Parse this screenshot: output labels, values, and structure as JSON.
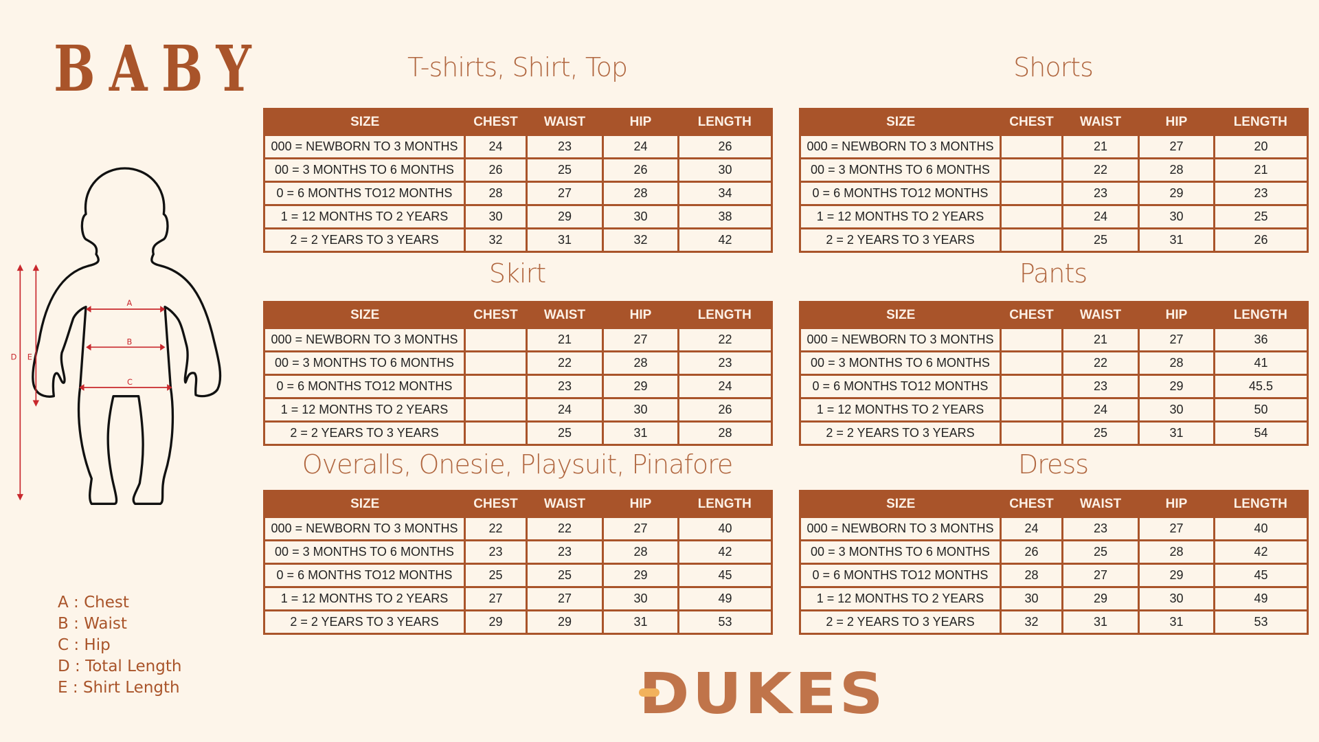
{
  "brand_title": "BABY",
  "legend": [
    "A : Chest",
    "B : Waist",
    "C : Hip",
    "D : Total Length",
    "E : Shirt Length"
  ],
  "diagram_labels": [
    "A",
    "B",
    "C",
    "D",
    "E"
  ],
  "logo": "DUKES",
  "colors": {
    "accent": "#a9542a",
    "background": "#fdf5ea",
    "logo": "#c0744a",
    "logo_accent": "#f2b25c",
    "diagram_arrows": "#c8282d"
  },
  "columns": [
    "SIZE",
    "CHEST",
    "WAIST",
    "HIP",
    "LENGTH"
  ],
  "sizes": [
    "000 = NEWBORN TO 3 MONTHS",
    "00 = 3 MONTHS TO 6 MONTHS",
    "0 = 6 MONTHS TO12 MONTHS",
    "1 = 12 MONTHS TO 2 YEARS",
    "2 = 2 YEARS TO 3 YEARS"
  ],
  "tables": [
    {
      "title": "T-shirts, Shirt, Top",
      "rows": [
        [
          "24",
          "23",
          "24",
          "26"
        ],
        [
          "26",
          "25",
          "26",
          "30"
        ],
        [
          "28",
          "27",
          "28",
          "34"
        ],
        [
          "30",
          "29",
          "30",
          "38"
        ],
        [
          "32",
          "31",
          "32",
          "42"
        ]
      ]
    },
    {
      "title": "Shorts",
      "rows": [
        [
          "",
          "21",
          "27",
          "20"
        ],
        [
          "",
          "22",
          "28",
          "21"
        ],
        [
          "",
          "23",
          "29",
          "23"
        ],
        [
          "",
          "24",
          "30",
          "25"
        ],
        [
          "",
          "25",
          "31",
          "26"
        ]
      ]
    },
    {
      "title": "Skirt",
      "rows": [
        [
          "",
          "21",
          "27",
          "22"
        ],
        [
          "",
          "22",
          "28",
          "23"
        ],
        [
          "",
          "23",
          "29",
          "24"
        ],
        [
          "",
          "24",
          "30",
          "26"
        ],
        [
          "",
          "25",
          "31",
          "28"
        ]
      ]
    },
    {
      "title": "Pants",
      "rows": [
        [
          "",
          "21",
          "27",
          "36"
        ],
        [
          "",
          "22",
          "28",
          "41"
        ],
        [
          "",
          "23",
          "29",
          "45.5"
        ],
        [
          "",
          "24",
          "30",
          "50"
        ],
        [
          "",
          "25",
          "31",
          "54"
        ]
      ]
    },
    {
      "title": "Overalls, Onesie, Playsuit, Pinafore",
      "rows": [
        [
          "22",
          "22",
          "27",
          "40"
        ],
        [
          "23",
          "23",
          "28",
          "42"
        ],
        [
          "25",
          "25",
          "29",
          "45"
        ],
        [
          "27",
          "27",
          "30",
          "49"
        ],
        [
          "29",
          "29",
          "31",
          "53"
        ]
      ]
    },
    {
      "title": "Dress",
      "rows": [
        [
          "24",
          "23",
          "27",
          "40"
        ],
        [
          "26",
          "25",
          "28",
          "42"
        ],
        [
          "28",
          "27",
          "29",
          "45"
        ],
        [
          "30",
          "29",
          "30",
          "49"
        ],
        [
          "32",
          "31",
          "31",
          "53"
        ]
      ]
    }
  ]
}
